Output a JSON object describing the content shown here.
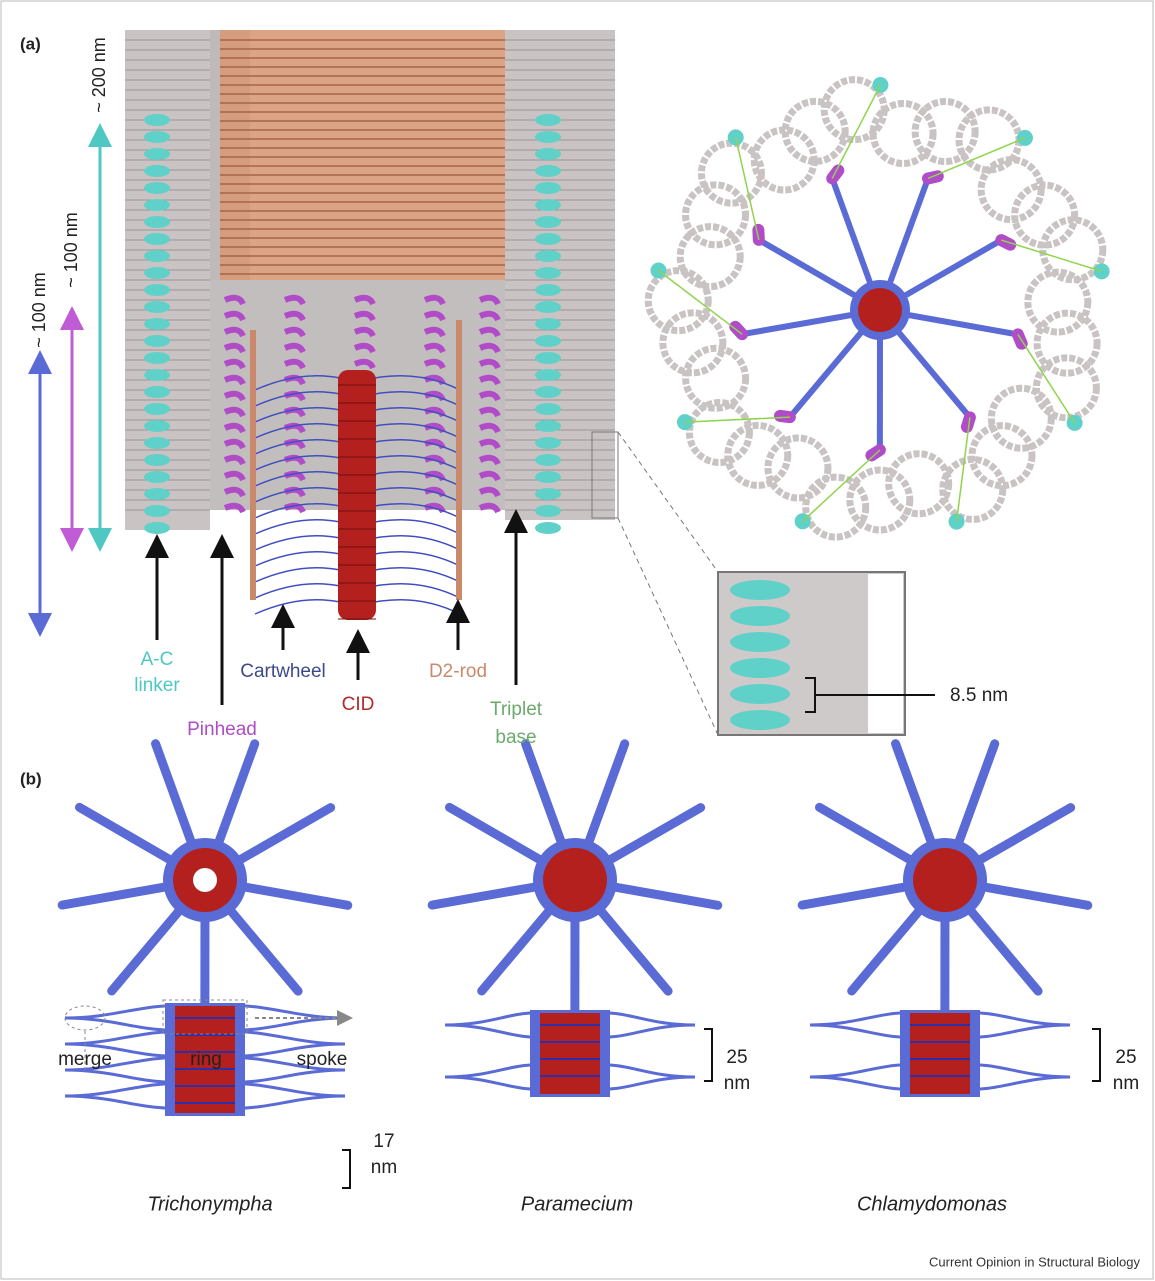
{
  "panel_a": {
    "label": "(a)",
    "scale_bars": [
      "~ 200 nm",
      "~ 100 nm",
      "~ 100 nm"
    ],
    "structures": [
      {
        "lines": [
          "A-C",
          "linker"
        ]
      },
      {
        "lines": [
          "Pinhead"
        ]
      },
      {
        "lines": [
          "Cartwheel"
        ]
      },
      {
        "lines": [
          "CID"
        ]
      },
      {
        "lines": [
          "D2-rod"
        ]
      },
      {
        "lines": [
          "Triplet",
          "base"
        ]
      }
    ],
    "inset_measure": "8.5 nm"
  },
  "panel_b": {
    "label": "(b)",
    "side_view_labels": [
      "merge",
      "ring",
      "spoke"
    ],
    "species": [
      {
        "name": "Trichonympha",
        "spacing": [
          "17",
          "nm"
        ]
      },
      {
        "name": "Paramecium",
        "spacing": [
          "25",
          "nm"
        ]
      },
      {
        "name": "Chlamydomonas",
        "spacing": [
          "25",
          "nm"
        ]
      }
    ]
  },
  "footer": "Current Opinion in Structural Biology"
}
